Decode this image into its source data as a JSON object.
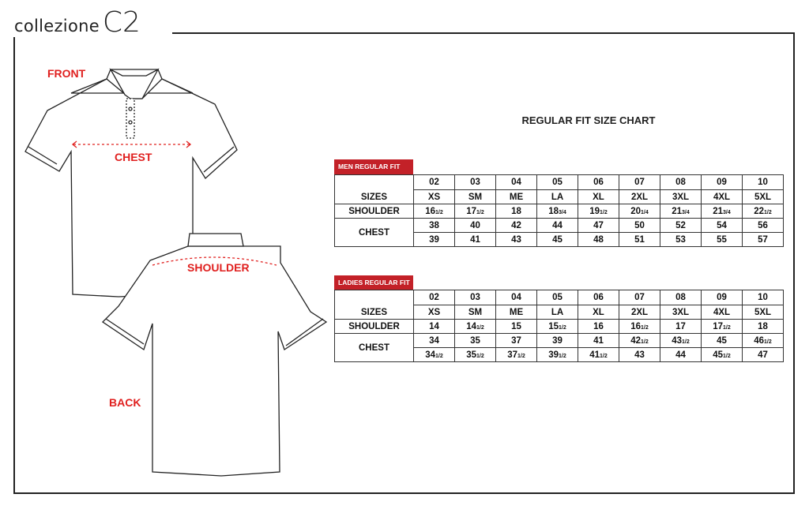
{
  "brand": {
    "wordmark": "collezione",
    "mark": "C2"
  },
  "labels": {
    "front": "FRONT",
    "chest": "CHEST",
    "shoulder": "SHOULDER",
    "back": "BACK"
  },
  "title": "REGULAR FIT SIZE CHART",
  "colors": {
    "accent_red": "#e0201f",
    "tag_red": "#c32128"
  },
  "tables": [
    {
      "label": "MEN REGULAR FIT",
      "codes": [
        "02",
        "03",
        "04",
        "05",
        "06",
        "07",
        "08",
        "09",
        "10"
      ],
      "sizes_label": "SIZES",
      "sizes": [
        "XS",
        "SM",
        "ME",
        "LA",
        "XL",
        "2XL",
        "3XL",
        "4XL",
        "5XL"
      ],
      "shoulder_label": "SHOULDER",
      "shoulder": [
        "16 1/2",
        "17 1/2",
        "18",
        "18 3/4",
        "19 1/2",
        "20 1/4",
        "21 3/4",
        "21 3/4",
        "22 1/2"
      ],
      "chest_label": "CHEST",
      "chest_min": [
        "38",
        "40",
        "42",
        "44",
        "47",
        "50",
        "52",
        "54",
        "56"
      ],
      "chest_max": [
        "39",
        "41",
        "43",
        "45",
        "48",
        "51",
        "53",
        "55",
        "57"
      ]
    },
    {
      "label": "LADIES REGULAR FIT",
      "codes": [
        "02",
        "03",
        "04",
        "05",
        "06",
        "07",
        "08",
        "09",
        "10"
      ],
      "sizes_label": "SIZES",
      "sizes": [
        "XS",
        "SM",
        "ME",
        "LA",
        "XL",
        "2XL",
        "3XL",
        "4XL",
        "5XL"
      ],
      "shoulder_label": "SHOULDER",
      "shoulder": [
        "14",
        "14 1/2",
        "15",
        "15 1/2",
        "16",
        "16 1/2",
        "17",
        "17 1/2",
        "18"
      ],
      "chest_label": "CHEST",
      "chest_min": [
        "34",
        "35",
        "37",
        "39",
        "41",
        "42 1/2",
        "43 1/2",
        "45",
        "46 1/2"
      ],
      "chest_max": [
        "34 1/2",
        "35 1/2",
        "37 1/2",
        "39 1/2",
        "41 1/2",
        "43",
        "44",
        "45 1/2",
        "47"
      ]
    }
  ]
}
